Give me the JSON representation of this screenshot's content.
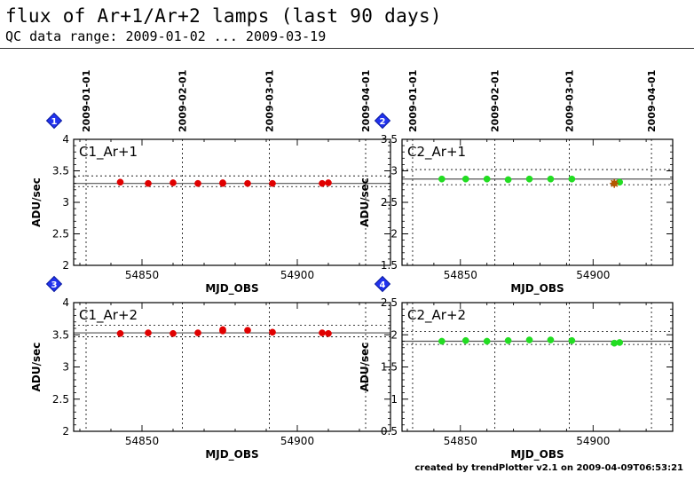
{
  "header": {
    "title": "flux of Ar+1/Ar+2 lamps (last 90 days)",
    "subtitle": "QC data range: 2009-01-02 ... 2009-03-19"
  },
  "footer": {
    "text": "created by trendPlotter v2.1 on 2009-04-09T06:53:21"
  },
  "colors": {
    "red_points": "#e00000",
    "green_points": "#22dd22",
    "outlier": "#b35a00",
    "mean_line": "#555555",
    "frame": "#000000"
  },
  "chart_data": [
    {
      "type": "scatter",
      "panel_number": "1",
      "label": "C1_Ar+1",
      "xlabel": "MJD_OBS",
      "ylabel": "ADU/sec",
      "xlim": [
        54828,
        54930
      ],
      "ylim": [
        2,
        4
      ],
      "yticks": [
        2,
        2.5,
        3,
        3.5,
        4
      ],
      "xticks": [
        54850,
        54900
      ],
      "top_date_ticks": [
        {
          "label": "2009-01-01",
          "mjd": 54832
        },
        {
          "label": "2009-02-01",
          "mjd": 54863
        },
        {
          "label": "2009-03-01",
          "mjd": 54891
        },
        {
          "label": "2009-04-01",
          "mjd": 54922
        }
      ],
      "mean": 3.3,
      "band": [
        3.25,
        3.42
      ],
      "point_color": "#e00000",
      "series": [
        {
          "x": [
            54843,
            54852,
            54860,
            54868,
            54876,
            54876,
            54884,
            54892,
            54908,
            54910
          ],
          "y": [
            3.32,
            3.3,
            3.31,
            3.3,
            3.31,
            3.3,
            3.3,
            3.3,
            3.3,
            3.31
          ]
        }
      ],
      "outliers": []
    },
    {
      "type": "scatter",
      "panel_number": "2",
      "label": "C2_Ar+1",
      "xlabel": "MJD_OBS",
      "ylabel": "ADU/sec",
      "xlim": [
        54828,
        54930
      ],
      "ylim": [
        1.5,
        3.5
      ],
      "yticks": [
        1.5,
        2,
        2.5,
        3,
        3.5
      ],
      "xticks": [
        54850,
        54900
      ],
      "top_date_ticks": [
        {
          "label": "2009-01-01",
          "mjd": 54832
        },
        {
          "label": "2009-02-01",
          "mjd": 54863
        },
        {
          "label": "2009-03-01",
          "mjd": 54891
        },
        {
          "label": "2009-04-01",
          "mjd": 54922
        }
      ],
      "mean": 2.87,
      "band": [
        2.78,
        3.02
      ],
      "point_color": "#22dd22",
      "series": [
        {
          "x": [
            54843,
            54852,
            54860,
            54868,
            54876,
            54884,
            54892,
            54910
          ],
          "y": [
            2.87,
            2.87,
            2.87,
            2.86,
            2.87,
            2.87,
            2.87,
            2.82
          ]
        }
      ],
      "outliers": [
        {
          "x": 54908,
          "y": 2.8
        }
      ]
    },
    {
      "type": "scatter",
      "panel_number": "3",
      "label": "C1_Ar+2",
      "xlabel": "MJD_OBS",
      "ylabel": "ADU/sec",
      "xlim": [
        54828,
        54930
      ],
      "ylim": [
        2,
        4
      ],
      "yticks": [
        2,
        2.5,
        3,
        3.5,
        4
      ],
      "xticks": [
        54850,
        54900
      ],
      "top_date_ticks": [],
      "mean": 3.53,
      "band": [
        3.47,
        3.65
      ],
      "point_color": "#e00000",
      "series": [
        {
          "x": [
            54843,
            54852,
            54860,
            54868,
            54876,
            54876,
            54884,
            54892,
            54908,
            54910
          ],
          "y": [
            3.52,
            3.53,
            3.52,
            3.53,
            3.56,
            3.58,
            3.57,
            3.54,
            3.53,
            3.52
          ]
        }
      ],
      "outliers": []
    },
    {
      "type": "scatter",
      "panel_number": "4",
      "label": "C2_Ar+2",
      "xlabel": "MJD_OBS",
      "ylabel": "ADU/sec",
      "xlim": [
        54828,
        54930
      ],
      "ylim": [
        0.5,
        2.5
      ],
      "yticks": [
        0.5,
        1,
        1.5,
        2,
        2.5
      ],
      "xticks": [
        54850,
        54900
      ],
      "top_date_ticks": [],
      "mean": 1.9,
      "band": [
        1.85,
        2.05
      ],
      "point_color": "#22dd22",
      "series": [
        {
          "x": [
            54843,
            54852,
            54860,
            54868,
            54876,
            54884,
            54892,
            54908,
            54910
          ],
          "y": [
            1.9,
            1.91,
            1.9,
            1.91,
            1.92,
            1.92,
            1.91,
            1.87,
            1.88
          ]
        }
      ],
      "outliers": []
    }
  ]
}
